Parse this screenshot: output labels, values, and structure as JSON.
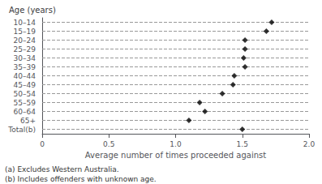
{
  "chart_data": {
    "type": "dot",
    "orientation": "horizontal",
    "title": "Age (years)",
    "xlabel": "Average number of times proceeded against",
    "categories": [
      "10–14",
      "15–19",
      "20–24",
      "25–29",
      "30–34",
      "35–39",
      "40–44",
      "45–49",
      "50–54",
      "55–59",
      "60–64",
      "65+",
      "Total(b)"
    ],
    "values": [
      1.72,
      1.68,
      1.52,
      1.52,
      1.51,
      1.52,
      1.44,
      1.43,
      1.35,
      1.18,
      1.22,
      1.1,
      1.5
    ],
    "color": "#000000",
    "marker": "diamond",
    "xlim": [
      0,
      2.0
    ],
    "xticks": [
      0,
      0.5,
      {
        "value": 1.0,
        "label": "1.0"
      },
      1.5,
      {
        "value": 2.0,
        "label": "2.0"
      }
    ],
    "grid": true,
    "annotations": [
      "(a) Excludes Western Australia.",
      "(b) Includes offenders with unknown age."
    ]
  }
}
